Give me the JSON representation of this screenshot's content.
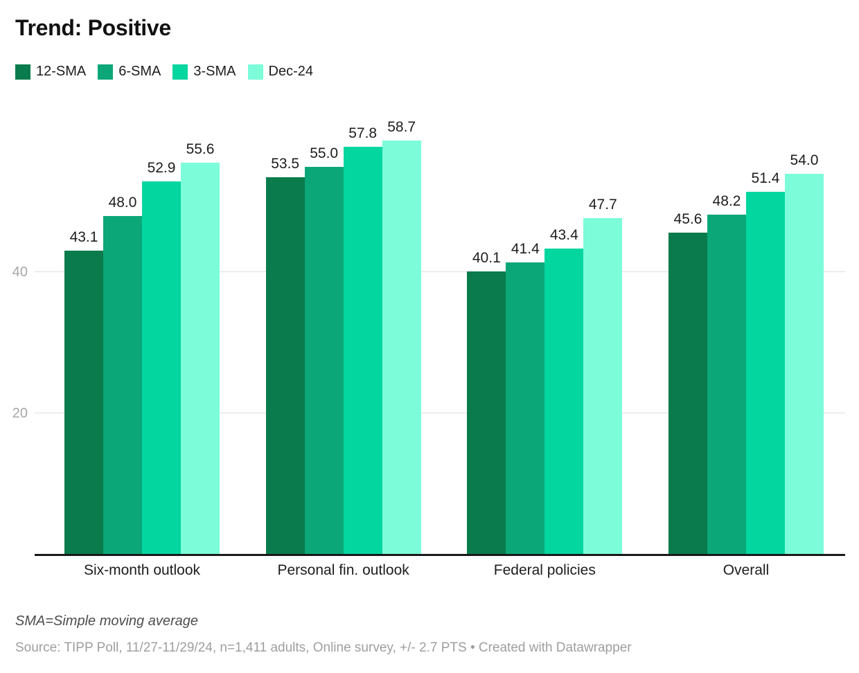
{
  "header": {
    "title": "Trend: Positive"
  },
  "chart_data": {
    "type": "bar",
    "categories": [
      "Six-month outlook",
      "Personal fin. outlook",
      "Federal policies",
      "Overall"
    ],
    "series": [
      {
        "name": "12-SMA",
        "color": "#0a7b4c",
        "values": [
          43.1,
          53.5,
          40.1,
          45.6
        ]
      },
      {
        "name": "6-SMA",
        "color": "#0ca778",
        "values": [
          48.0,
          55.0,
          41.4,
          48.2
        ]
      },
      {
        "name": "3-SMA",
        "color": "#04d6a0",
        "values": [
          52.9,
          57.8,
          43.4,
          51.4
        ]
      },
      {
        "name": "Dec-24",
        "color": "#7dfcd9",
        "values": [
          55.6,
          58.7,
          47.7,
          54.0
        ]
      }
    ],
    "title": "Trend: Positive",
    "xlabel": "",
    "ylabel": "",
    "y_ticks": [
      20,
      40
    ],
    "ylim": [
      0,
      64.9
    ],
    "grid": "horizontal",
    "legend_position": "top",
    "value_labels": true,
    "value_label_format": "one-decimal"
  },
  "footer": {
    "note": "SMA=Simple moving average",
    "source": "Source: TIPP Poll, 11/27-11/29/24, n=1,411 adults, Online survey, +/- 2.7 PTS • Created with Datawrapper"
  }
}
